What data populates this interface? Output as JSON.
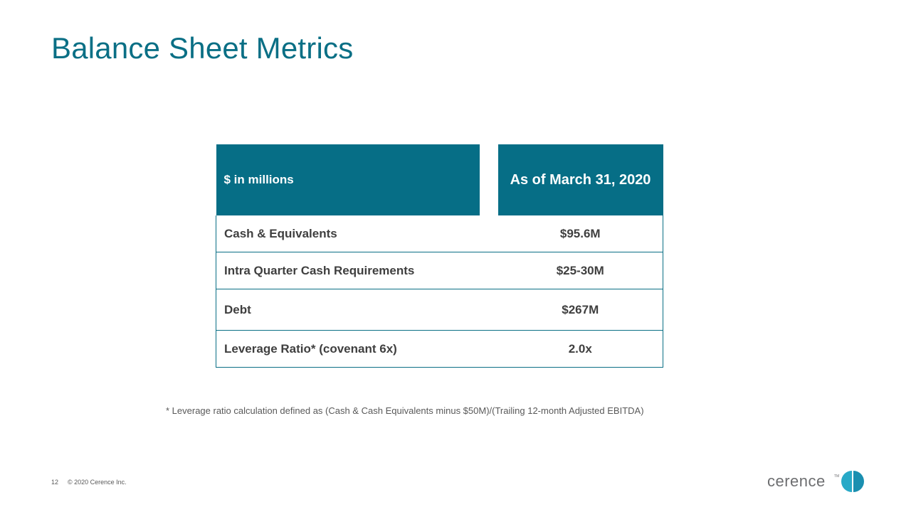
{
  "slide": {
    "title": "Balance Sheet Metrics",
    "page_number": "12",
    "copyright": "© 2020 Cerence Inc.",
    "accent_color": "#066e86"
  },
  "table": {
    "header_label": "$ in millions",
    "header_value": "As of March 31, 2020",
    "rows": [
      {
        "label": "Cash & Equivalents",
        "value": "$95.6M"
      },
      {
        "label": "Intra Quarter Cash Requirements",
        "value": "$25-30M"
      },
      {
        "label": "Debt",
        "value": "$267M"
      },
      {
        "label": "Leverage Ratio* (covenant 6x)",
        "value": "2.0x"
      }
    ]
  },
  "footnote": "* Leverage ratio calculation defined as (Cash & Cash Equivalents minus $50M)/(Trailing 12-month Adjusted EBITDA)",
  "logo": {
    "text": "cerence",
    "trademark": "TM",
    "icon": "cerence-logo-icon"
  }
}
